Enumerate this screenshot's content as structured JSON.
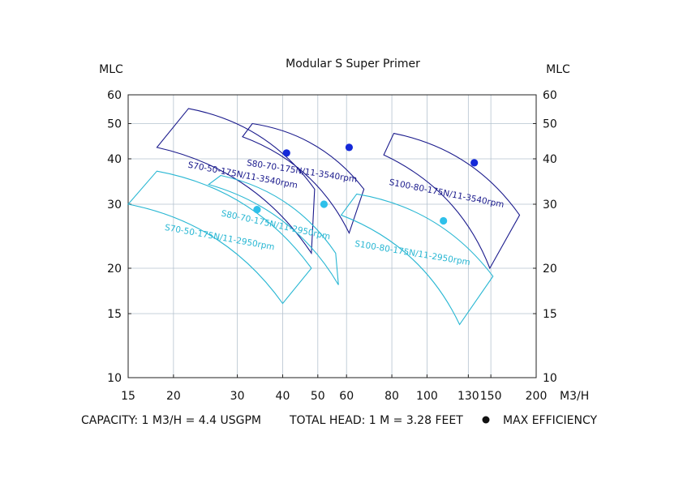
{
  "chart_data": {
    "type": "line",
    "title": "Modular S Super Primer",
    "ylabel_left": "MLC",
    "ylabel_right": "MLC",
    "xlabel": "M3/H",
    "x_scale": "log",
    "y_scale": "log",
    "xlim": [
      15,
      200
    ],
    "ylim": [
      10,
      60
    ],
    "x_ticks": [
      "15",
      "20",
      "30",
      "40",
      "50",
      "60",
      "80",
      "100",
      "130",
      "150",
      "200"
    ],
    "y_ticks": [
      "10",
      "15",
      "20",
      "30",
      "40",
      "50",
      "60"
    ],
    "grid": true,
    "footnotes": {
      "capacity": "CAPACITY: 1 M3/H = 4.4 USGPM",
      "head": "TOTAL HEAD: 1 M = 3.28 FEET",
      "max_eff": "MAX EFFICIENCY"
    },
    "series": [
      {
        "name": "S70-50-175N/11-3540rpm",
        "color": "#1a1a8c",
        "corners": {
          "tl": [
            22,
            55
          ],
          "tr": [
            49,
            33
          ],
          "br": [
            48,
            22
          ],
          "bl": [
            18,
            43
          ]
        },
        "max_eff": [
          41,
          41.5
        ]
      },
      {
        "name": "S80-70-175N/11-3540rpm",
        "color": "#1a1a8c",
        "corners": {
          "tl": [
            33,
            50
          ],
          "tr": [
            67,
            33
          ],
          "br": [
            61,
            25
          ],
          "bl": [
            31,
            46
          ]
        },
        "max_eff": [
          61,
          43
        ]
      },
      {
        "name": "S100-80-175N/11-3540rpm",
        "color": "#1a1a8c",
        "corners": {
          "tl": [
            81,
            47
          ],
          "tr": [
            180,
            28
          ],
          "br": [
            149,
            20
          ],
          "bl": [
            76,
            41
          ]
        },
        "max_eff": [
          135,
          39
        ]
      },
      {
        "name": "S70-50-175N/11-2950rpm",
        "color": "#29b7d3",
        "corners": {
          "tl": [
            18,
            37
          ],
          "tr": [
            48,
            20
          ],
          "br": [
            40,
            16
          ],
          "bl": [
            15,
            30
          ]
        },
        "max_eff": [
          34,
          29
        ]
      },
      {
        "name": "S80-70-175N/11-2950rpm",
        "color": "#29b7d3",
        "corners": {
          "tl": [
            27,
            36
          ],
          "tr": [
            56,
            22
          ],
          "br": [
            57,
            18
          ],
          "bl": [
            25,
            34
          ]
        },
        "max_eff": [
          52,
          30
        ]
      },
      {
        "name": "S100-80-175N/11-2950rpm",
        "color": "#29b7d3",
        "corners": {
          "tl": [
            64,
            32
          ],
          "tr": [
            152,
            19
          ],
          "br": [
            123,
            14
          ],
          "bl": [
            58,
            28
          ]
        },
        "max_eff": [
          111,
          27
        ]
      }
    ]
  }
}
